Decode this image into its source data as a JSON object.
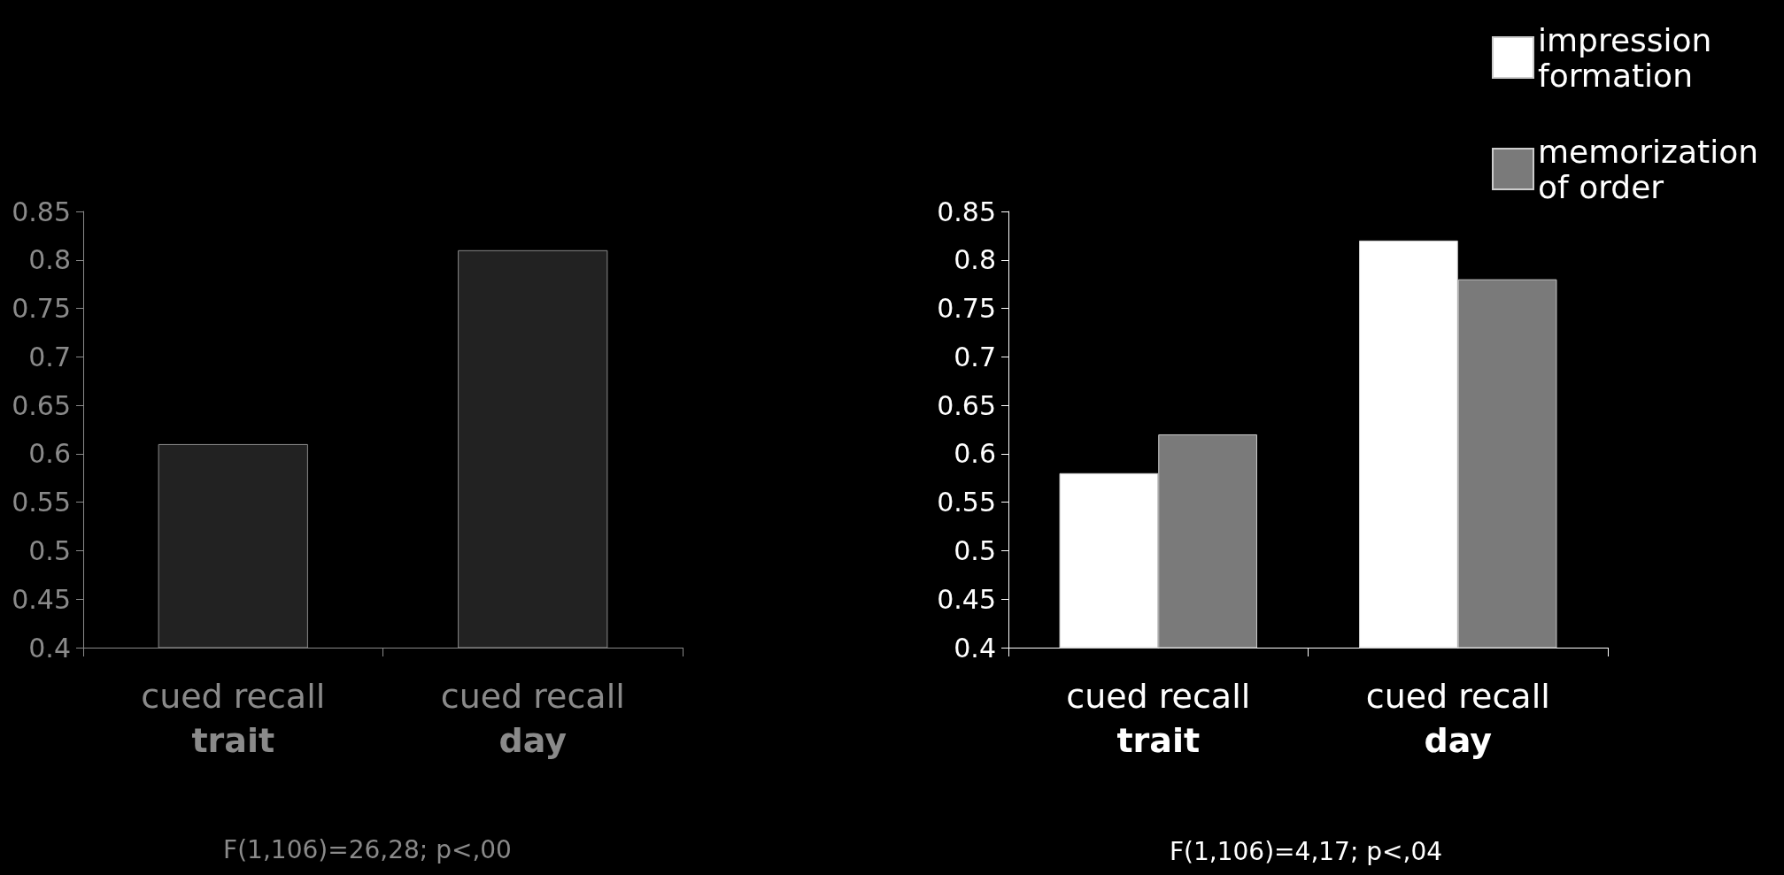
{
  "chart_data": [
    {
      "type": "bar",
      "categories": [
        "cued recall\ntrait",
        "cued recall\nday"
      ],
      "values": [
        0.61,
        0.81
      ],
      "color": "#222222",
      "ylim": [
        0.4,
        0.85
      ],
      "yticks": [
        0.4,
        0.45,
        0.5,
        0.55,
        0.6,
        0.65,
        0.7,
        0.75,
        0.8,
        0.85
      ],
      "grid": false,
      "legend": false,
      "annotations": [
        "F(1,106)=26,28; p<,00"
      ]
    },
    {
      "type": "bar",
      "categories": [
        "cued recall\ntrait",
        "cued recall\nday"
      ],
      "series": [
        {
          "name": "impression formation",
          "color": "#ffffff",
          "values": [
            0.58,
            0.82
          ]
        },
        {
          "name": "memorization of order",
          "color": "#7a7a7a",
          "values": [
            0.62,
            0.78
          ]
        }
      ],
      "ylim": [
        0.4,
        0.85
      ],
      "yticks": [
        0.4,
        0.45,
        0.5,
        0.55,
        0.6,
        0.65,
        0.7,
        0.75,
        0.8,
        0.85
      ],
      "grid": false,
      "legend": "top right",
      "annotations": [
        "F(1,106)=4,17; p<,04"
      ]
    }
  ]
}
